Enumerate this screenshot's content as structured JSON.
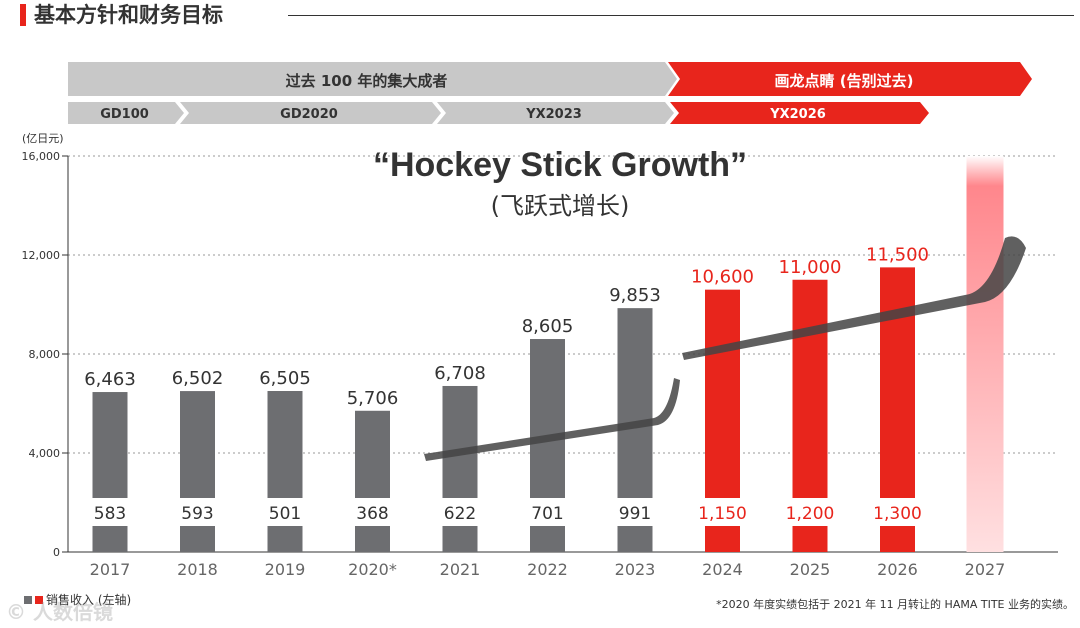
{
  "page": {
    "title": "基本方针和财务目标",
    "footnote": "*2020 年度实绩包括于 2021 年 11 月转让的 HAMA TITE 业务的实绩。",
    "watermark": "© 人数倍镜"
  },
  "legend": {
    "label": "销售收入 (左轴)"
  },
  "phases": {
    "top": [
      {
        "label": "过去 100 年的集大成者",
        "color": "#c8c8c8",
        "text_color": "#333333"
      },
      {
        "label": "画龙点睛 (告别过去)",
        "color": "#e8251c",
        "text_color": "#ffffff"
      }
    ],
    "plans": [
      {
        "label": "GD100",
        "color": "#c8c8c8"
      },
      {
        "label": "GD2020",
        "color": "#c8c8c8"
      },
      {
        "label": "YX2023",
        "color": "#c8c8c8"
      },
      {
        "label": "YX2026",
        "color": "#e8251c"
      }
    ]
  },
  "headline": {
    "main": "“Hockey Stick Growth”",
    "sub": "(飞跃式增长)"
  },
  "colors": {
    "actual": "#6d6e71",
    "target": "#e8251c",
    "fade_top": "#ff7f85",
    "fade_bottom": "#ffe0e1",
    "stick": "#444444"
  },
  "chart_data": {
    "type": "bar",
    "unit_label": "(亿日元)",
    "ylim": [
      0,
      16000
    ],
    "yticks": [
      0,
      4000,
      8000,
      12000,
      16000
    ],
    "ytick_labels": [
      "0",
      "4,000",
      "8,000",
      "12,000",
      "16,000"
    ],
    "categories": [
      "2017",
      "2018",
      "2019",
      "2020*",
      "2021",
      "2022",
      "2023",
      "2024",
      "2025",
      "2026",
      "2027"
    ],
    "series": [
      {
        "name": "销售收入 (左轴)",
        "values": [
          6463,
          6502,
          6505,
          5706,
          6708,
          8605,
          9853,
          10600,
          11000,
          11500,
          16000
        ]
      }
    ],
    "value_labels": [
      "6,463",
      "6,502",
      "6,505",
      "5,706",
      "6,708",
      "8,605",
      "9,853",
      "10,600",
      "11,000",
      "11,500",
      ""
    ],
    "secondary_labels": [
      "583",
      "593",
      "501",
      "368",
      "622",
      "701",
      "991",
      "1,150",
      "1,200",
      "1,300",
      ""
    ],
    "kind": [
      "actual",
      "actual",
      "actual",
      "actual",
      "actual",
      "actual",
      "actual",
      "target",
      "target",
      "target",
      "vision"
    ]
  }
}
